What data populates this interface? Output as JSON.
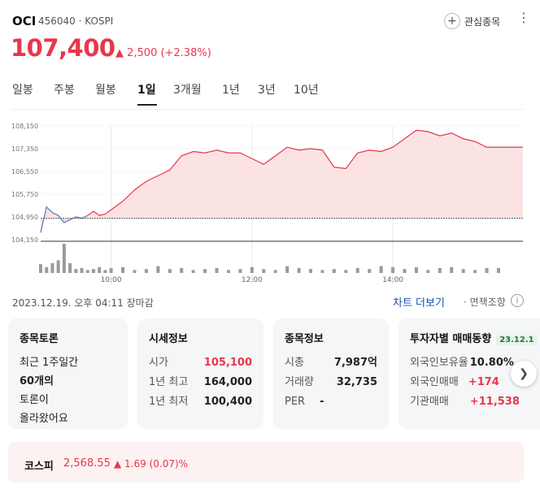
{
  "header": {
    "name": "OCI",
    "code": "456040 · KOSPI",
    "watch_label": "관심종목",
    "more_icon": "more-vertical-icon",
    "price": "107,400",
    "change": "▲ 2,500 (+2.38%)"
  },
  "tabs": [
    "일봉",
    "주봉",
    "월봉",
    "1일",
    "3개월",
    "1년",
    "3년",
    "10년"
  ],
  "active_tab": "1일",
  "colors": {
    "up": "#e8364b",
    "fill": "#fbe3e3",
    "pre_market": "#4a90d9",
    "volume": "#9a9a9a"
  },
  "chart_data": {
    "type": "line",
    "y_ticks": [
      "108,150",
      "107,350",
      "106,550",
      "105,750",
      "104,950",
      "104,150"
    ],
    "ylim": [
      104150,
      108150
    ],
    "x_ticks": [
      "10:00",
      "12:00",
      "14:00"
    ],
    "prev_close": 104900,
    "x": [
      "09:00",
      "09:05",
      "09:10",
      "09:15",
      "09:20",
      "09:25",
      "09:30",
      "09:35",
      "09:40",
      "09:45",
      "09:50",
      "09:55",
      "10:00",
      "10:10",
      "10:20",
      "10:30",
      "10:40",
      "10:50",
      "11:00",
      "11:10",
      "11:20",
      "11:30",
      "11:40",
      "11:50",
      "12:00",
      "12:10",
      "12:20",
      "12:30",
      "12:40",
      "12:50",
      "13:00",
      "13:10",
      "13:20",
      "13:30",
      "13:40",
      "13:50",
      "14:00",
      "14:10",
      "14:20",
      "14:30",
      "14:40",
      "14:50",
      "15:00",
      "15:10",
      "15:20",
      "15:30"
    ],
    "price": [
      104400,
      105300,
      105100,
      105000,
      104750,
      104850,
      104950,
      104900,
      105000,
      105150,
      105000,
      105050,
      105200,
      105500,
      105900,
      106200,
      106400,
      106600,
      107100,
      107250,
      107200,
      107300,
      107200,
      107200,
      107000,
      106800,
      107100,
      107400,
      107300,
      107350,
      107300,
      106700,
      106650,
      107200,
      107300,
      107250,
      107400,
      107700,
      108000,
      107950,
      107800,
      107900,
      107700,
      107600,
      107400,
      107400
    ],
    "volume": [
      9,
      6,
      10,
      13,
      30,
      10,
      4,
      5,
      3,
      4,
      6,
      3,
      5,
      6,
      3,
      4,
      7,
      4,
      5,
      3,
      4,
      5,
      3,
      4,
      6,
      4,
      3,
      7,
      5,
      4,
      3,
      4,
      3,
      5,
      4,
      7,
      6,
      4,
      6,
      3,
      5,
      6,
      4,
      3,
      5,
      5
    ]
  },
  "footer": {
    "timestamp": "2023.12.19. 오후 04:11 장마감",
    "chart_more": "차트 더보기",
    "disclaimer": "· 면책조항",
    "disclaimer_icon": "info-icon"
  },
  "cards": {
    "discussion": {
      "title": "종목토론",
      "line1": "최근 1주일간",
      "count": "60개의",
      "line3": "토론이",
      "line4": "올라왔어요"
    },
    "quote": {
      "title": "시세정보",
      "rows": [
        {
          "k": "시가",
          "v": "105,100"
        },
        {
          "k": "1년 최고",
          "v": "164,000"
        },
        {
          "k": "1년 최저",
          "v": "100,400"
        }
      ]
    },
    "info": {
      "title": "종목정보",
      "rows": [
        {
          "k": "시총",
          "v": "7,987억"
        },
        {
          "k": "거래량",
          "v": "32,735"
        },
        {
          "k": "PER",
          "v": "-"
        }
      ]
    },
    "investor": {
      "title": "투자자별 매매동향",
      "badge": "23.12.1",
      "rows": [
        {
          "k": "외국인보유율",
          "v": "10.80%"
        },
        {
          "k": "외국인매매",
          "v": "+174"
        },
        {
          "k": "기관매매",
          "v": "+11,538"
        }
      ]
    }
  },
  "index": {
    "name": "코스피",
    "value": "2,568.55",
    "change": "▲ 1.69 (0.07)%"
  }
}
